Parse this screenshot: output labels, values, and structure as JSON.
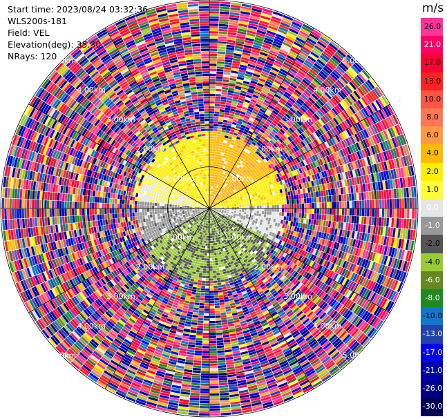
{
  "header": {
    "start_time": "Start time: 2023/08/24 03:32:36",
    "instrument": "WLS200s-181",
    "field": "Field: VEL",
    "elevation": "Elevation(deg): 35.30",
    "nrays": "NRays: 120"
  },
  "colorbar": {
    "unit": "m/s",
    "labels": [
      "26.0",
      "21.0",
      "17.0",
      "13.0",
      "10.0",
      "8.0",
      "6.0",
      "4.0",
      "2.0",
      "1.0",
      "0.0",
      "-1.0",
      "-2.0",
      "-4.0",
      "-6.0",
      "-8.0",
      "-10.0",
      "-13.0",
      "-17.0",
      "-21.0",
      "-26.0",
      "-30.0"
    ],
    "label_colors": [
      "#000000",
      "#ffffff",
      "#000000",
      "#000000",
      "#000000",
      "#000000",
      "#000000",
      "#000000",
      "#000000",
      "#000000",
      "#ffffff",
      "#ffffff",
      "#000000",
      "#000000",
      "#ffffff",
      "#ffffff",
      "#000000",
      "#ffffff",
      "#ffffff",
      "#ffffff",
      "#ffffff",
      "#ffffff"
    ],
    "colors": [
      "#ff3399",
      "#ff0066",
      "#ff0033",
      "#ff2222",
      "#ff5544",
      "#ff7755",
      "#ff9944",
      "#ffbb00",
      "#ffee00",
      "#ffff33",
      "#e6e6e6",
      "#999999",
      "#555555",
      "#99cc33",
      "#668822",
      "#228822",
      "#1177cc",
      "#2244aa",
      "#0000ee",
      "#0000aa",
      "#000088",
      "#000055"
    ]
  },
  "chart_data": {
    "type": "ppi",
    "title": "",
    "field": "VEL",
    "units": "m/s",
    "elevation_deg": 35.3,
    "n_rays": 120,
    "range_rings_km": [
      1.0,
      2.0,
      3.0,
      4.0,
      5.0
    ],
    "ring_labels": [
      "1.00km",
      "2.00km",
      "3.00km",
      "4.00km",
      "5.00km"
    ],
    "azimuth_spokes_deg": [
      0,
      30,
      60,
      90,
      120,
      150,
      180,
      210,
      240,
      270,
      300,
      330
    ],
    "value_range": [
      -30.0,
      26.0
    ],
    "inner_region_km": 1.7,
    "inner_region_sectors": [
      {
        "azimuth_from": 300,
        "azimuth_to": 360,
        "velocity_mps": 1.5
      },
      {
        "azimuth_from": 0,
        "azimuth_to": 60,
        "velocity_mps": 3.5
      },
      {
        "azimuth_from": 60,
        "azimuth_to": 85,
        "velocity_mps": 1.5
      },
      {
        "azimuth_from": 85,
        "azimuth_to": 115,
        "velocity_mps": -1.0
      },
      {
        "azimuth_from": 115,
        "azimuth_to": 240,
        "velocity_mps": -4.0
      },
      {
        "azimuth_from": 240,
        "azimuth_to": 275,
        "velocity_mps": -1.5
      }
    ],
    "outer_region": "noise (random velocities over full color range)"
  }
}
